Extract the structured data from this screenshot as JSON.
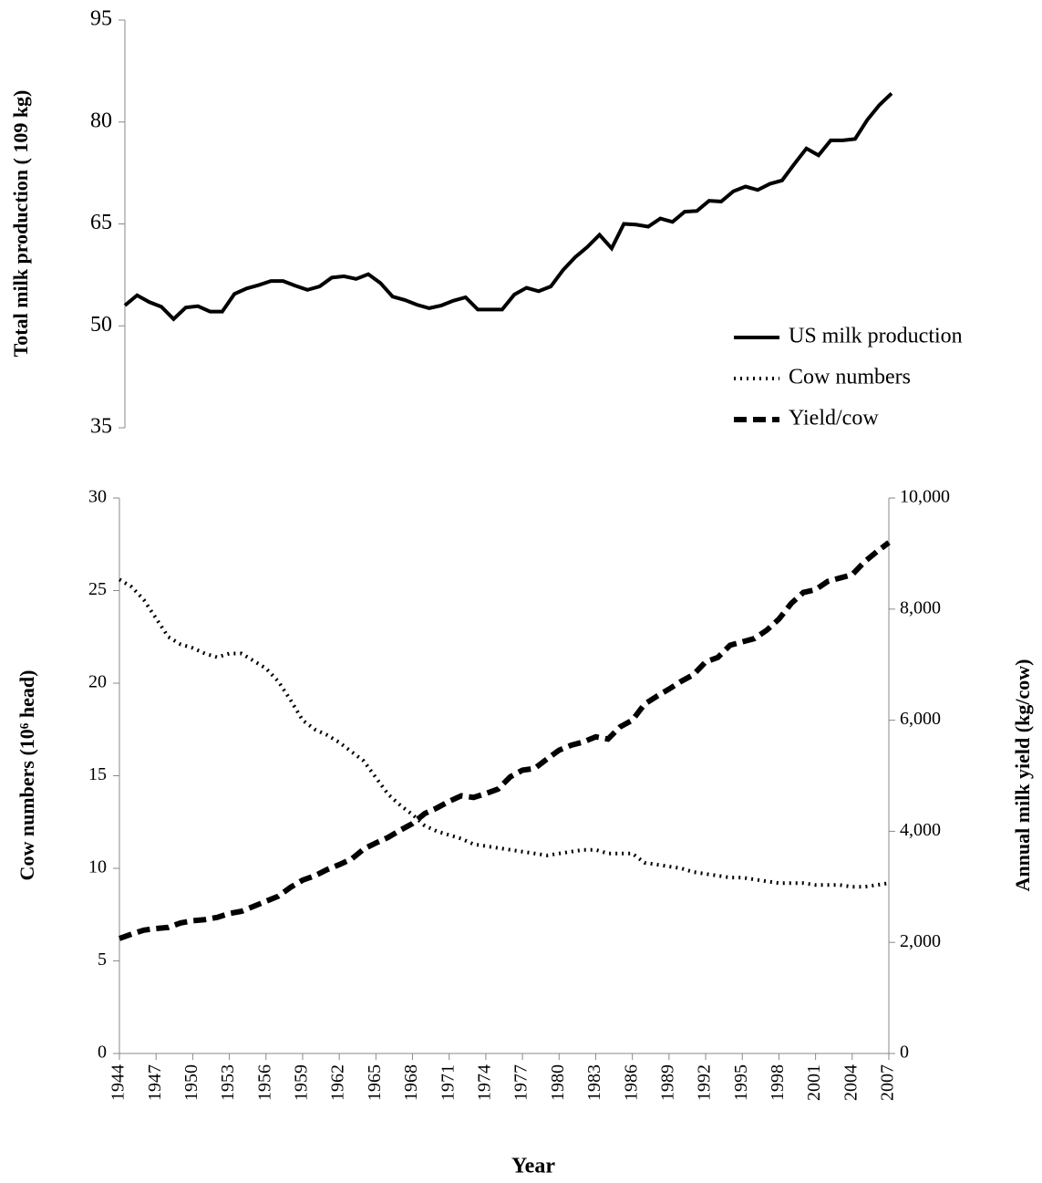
{
  "chart_data": [
    {
      "type": "line",
      "ylabel": "Total milk production ( 109 kg)",
      "x": [
        1944,
        1945,
        1946,
        1947,
        1948,
        1949,
        1950,
        1951,
        1952,
        1953,
        1954,
        1955,
        1956,
        1957,
        1958,
        1959,
        1960,
        1961,
        1962,
        1963,
        1964,
        1965,
        1966,
        1967,
        1968,
        1969,
        1970,
        1971,
        1972,
        1973,
        1974,
        1975,
        1976,
        1977,
        1978,
        1979,
        1980,
        1981,
        1982,
        1983,
        1984,
        1985,
        1986,
        1987,
        1988,
        1989,
        1990,
        1991,
        1992,
        1993,
        1994,
        1995,
        1996,
        1997,
        1998,
        1999,
        2000,
        2001,
        2002,
        2003,
        2004,
        2005,
        2006,
        2007
      ],
      "xlim": [
        1944,
        2007
      ],
      "ylim": [
        35,
        95
      ],
      "yticks": [
        35,
        50,
        65,
        80,
        95
      ],
      "series": [
        {
          "name": "US milk production",
          "color": "#000000",
          "line_style": "solid",
          "values": [
            53,
            54.5,
            53.5,
            52.8,
            51,
            52.7,
            52.9,
            52.1,
            52.1,
            54.7,
            55.5,
            56,
            56.6,
            56.6,
            55.9,
            55.3,
            55.8,
            57.1,
            57.3,
            56.9,
            57.6,
            56.3,
            54.3,
            53.8,
            53.1,
            52.6,
            53,
            53.7,
            54.2,
            52.4,
            52.4,
            52.4,
            54.6,
            55.6,
            55.1,
            55.8,
            58.2,
            60.1,
            61.6,
            63.4,
            61.4,
            65,
            64.9,
            64.6,
            65.8,
            65.3,
            66.8,
            66.9,
            68.4,
            68.3,
            69.8,
            70.5,
            70,
            70.9,
            71.4,
            73.8,
            76.1,
            75.1,
            77.3,
            77.3,
            77.5,
            80.3,
            82.5,
            84.2
          ]
        }
      ]
    },
    {
      "type": "line",
      "xlabel": "Year",
      "ylabel": "Cow numbers (10⁶ head)",
      "y2label": "Annual milk yield (kg/cow)",
      "x": [
        1944,
        1945,
        1946,
        1947,
        1948,
        1949,
        1950,
        1951,
        1952,
        1953,
        1954,
        1955,
        1956,
        1957,
        1958,
        1959,
        1960,
        1961,
        1962,
        1963,
        1964,
        1965,
        1966,
        1967,
        1968,
        1969,
        1970,
        1971,
        1972,
        1973,
        1974,
        1975,
        1976,
        1977,
        1978,
        1979,
        1980,
        1981,
        1982,
        1983,
        1984,
        1985,
        1986,
        1987,
        1988,
        1989,
        1990,
        1991,
        1992,
        1993,
        1994,
        1995,
        1996,
        1997,
        1998,
        1999,
        2000,
        2001,
        2002,
        2003,
        2004,
        2005,
        2006,
        2007
      ],
      "xlim": [
        1944,
        2007
      ],
      "xticks": [
        1944,
        1947,
        1950,
        1953,
        1956,
        1959,
        1962,
        1965,
        1968,
        1971,
        1974,
        1977,
        1980,
        1983,
        1986,
        1989,
        1992,
        1995,
        1998,
        2001,
        2004,
        2007
      ],
      "ylim": [
        0,
        30
      ],
      "yticks": [
        0,
        5,
        10,
        15,
        20,
        25,
        30
      ],
      "y2lim": [
        0,
        10000
      ],
      "y2ticks": [
        0,
        {
          "value": 2000,
          "label": "2,000"
        },
        {
          "value": 4000,
          "label": "4,000"
        },
        {
          "value": 6000,
          "label": "6,000"
        },
        {
          "value": 8000,
          "label": "8,000"
        },
        {
          "value": 10000,
          "label": "10,000"
        }
      ],
      "series": [
        {
          "name": "Cow numbers",
          "color": "#000000",
          "line_style": "dotted",
          "values": [
            25.6,
            25.2,
            24.5,
            23.5,
            22.5,
            22.1,
            21.9,
            21.6,
            21.4,
            21.6,
            21.6,
            21.2,
            20.8,
            20.1,
            19.1,
            18,
            17.5,
            17.2,
            16.8,
            16.3,
            15.8,
            14.9,
            14,
            13.4,
            12.9,
            12.3,
            12,
            11.8,
            11.6,
            11.3,
            11.2,
            11.1,
            11,
            10.9,
            10.8,
            10.7,
            10.8,
            10.9,
            11,
            11,
            10.8,
            10.8,
            10.8,
            10.3,
            10.2,
            10.1,
            10,
            9.8,
            9.7,
            9.6,
            9.5,
            9.5,
            9.4,
            9.3,
            9.2,
            9.2,
            9.2,
            9.1,
            9.1,
            9.1,
            9,
            9,
            9.1,
            9.2
          ]
        },
        {
          "name": "Yield/cow",
          "color": "#000000",
          "line_style": "dashed",
          "axis": "y2",
          "values": [
            2070,
            2150,
            2220,
            2250,
            2270,
            2350,
            2390,
            2410,
            2450,
            2520,
            2560,
            2650,
            2740,
            2830,
            2990,
            3120,
            3200,
            3310,
            3400,
            3500,
            3680,
            3790,
            3890,
            4020,
            4140,
            4320,
            4420,
            4540,
            4640,
            4610,
            4680,
            4760,
            4980,
            5100,
            5130,
            5300,
            5460,
            5550,
            5610,
            5700,
            5660,
            5880,
            6000,
            6290,
            6430,
            6560,
            6700,
            6820,
            7050,
            7130,
            7350,
            7410,
            7470,
            7620,
            7820,
            8100,
            8300,
            8350,
            8500,
            8560,
            8620,
            8850,
            9030,
            9200
          ]
        }
      ]
    }
  ]
}
